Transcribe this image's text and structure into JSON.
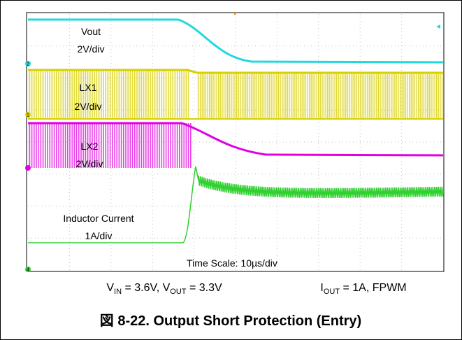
{
  "scope": {
    "labels": [
      {
        "name": "Vout",
        "scale": "2V/div"
      },
      {
        "name": "LX1",
        "scale": "2V/div"
      },
      {
        "name": "LX2",
        "scale": "2V/div"
      },
      {
        "name": "Inductor Current",
        "scale": "1A/div"
      }
    ],
    "time_scale": "Time Scale: 10µs/div",
    "markers": [
      "2",
      "1",
      "4"
    ]
  },
  "conditions": {
    "left": [
      {
        "text": "V"
      },
      {
        "sub": "IN"
      },
      {
        "text": " = 3.6V, V"
      },
      {
        "sub": "OUT"
      },
      {
        "text": " = 3.3V"
      }
    ],
    "right": [
      {
        "text": "I"
      },
      {
        "sub": "OUT"
      },
      {
        "text": " = 1A, FPWM"
      }
    ]
  },
  "caption": "図 8-22. Output Short Protection (Entry)"
}
